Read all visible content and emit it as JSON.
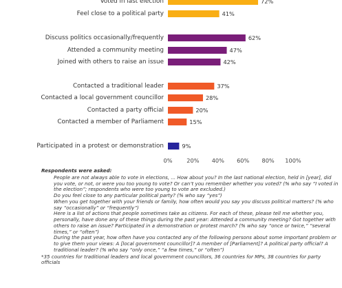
{
  "chart_data": {
    "type": "bar",
    "orientation": "horizontal",
    "categories": [
      "Voted in last election",
      "Feel close to a political party",
      "Discuss politics occasionally/frequently",
      "Attended a community meeting",
      "Joined with others to raise an issue",
      "Contacted a traditional leader",
      "Contacted a local government councillor",
      "Contacted a party official",
      "Contacted a member of Parliament",
      "Participated in a protest or demonstration"
    ],
    "values": [
      72,
      41,
      62,
      47,
      42,
      37,
      28,
      20,
      15,
      9
    ],
    "value_labels": [
      "72%",
      "41%",
      "62%",
      "47%",
      "42%",
      "37%",
      "28%",
      "20%",
      "15%",
      "9%"
    ],
    "groups": [
      {
        "color": "#F9AE14",
        "indices": [
          0,
          1
        ]
      },
      {
        "color": "#7A1E79",
        "indices": [
          2,
          3,
          4
        ]
      },
      {
        "color": "#F05A28",
        "indices": [
          5,
          6,
          7,
          8
        ]
      },
      {
        "color": "#27249C",
        "indices": [
          9
        ]
      }
    ],
    "xlim": [
      0,
      100
    ],
    "ticks": [
      0,
      20,
      40,
      60,
      80,
      100
    ],
    "tick_labels": [
      "0%",
      "20%",
      "40%",
      "60%",
      "80%",
      "100%"
    ],
    "grid": false,
    "legend": "none"
  },
  "notes": {
    "heading": "Respondents were asked:",
    "questions": [
      "People are not always able to vote in elections, ... How about you? In the last national election, held in [year], did you vote, or not, or were you too young to vote? Or can’t you remember whether you voted? (% who say “I voted in the election”; respondents who were too young to vote are excluded.)",
      "Do you feel close to any particular political party? (% who say “yes”)",
      "When you get together with your friends or family, how often would you say you discuss political matters? (% who say “occasionally” or “frequently”)",
      "Here is a list of actions that people sometimes take as citizens. For each of these, please tell me whether you, personally, have done any of these things during the past year: Attended a community meeting? Got together with others to raise an issue? Participated in a demonstration or protest march? (% who say “once or twice,” “several times,” or “often”)",
      "During the past year, how often have you contacted any of the following persons about some important problem or to give them your views: A [local government councillor]? A member of [Parliament]? A political party official? A traditional leader? (% who say “only once,” “a few times,” or “often”)"
    ],
    "footnote": "*35 countries for traditional leaders and local government councillors, 36 countries for MPs, 38 countries for party officials"
  }
}
